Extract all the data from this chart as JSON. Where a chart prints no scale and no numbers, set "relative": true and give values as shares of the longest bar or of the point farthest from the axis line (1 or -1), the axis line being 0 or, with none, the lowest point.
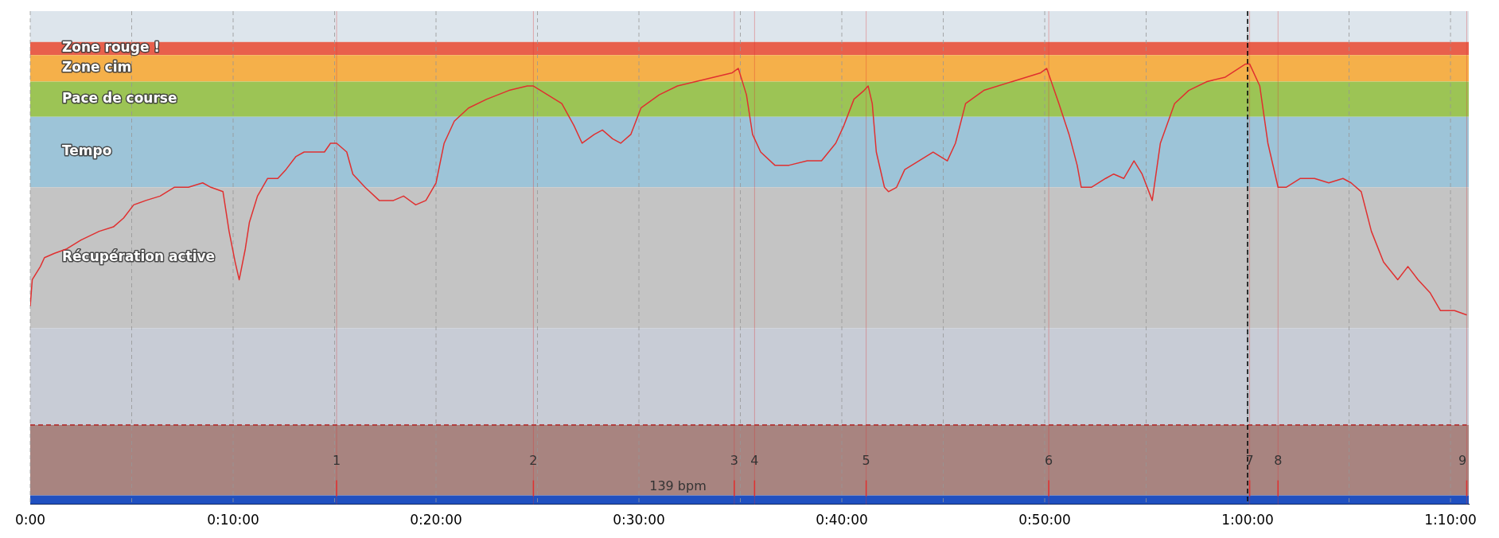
{
  "chart_data": {
    "type": "line",
    "relative": true,
    "legend": false,
    "grid": "x",
    "marker": "none",
    "xlim": [
      0,
      70.9
    ],
    "xticks": [
      {
        "value": 0,
        "label": "0:00"
      },
      {
        "value": 5,
        "label": null
      },
      {
        "value": 10,
        "label": "0:10:00"
      },
      {
        "value": 15,
        "label": null
      },
      {
        "value": 20,
        "label": "0:20:00"
      },
      {
        "value": 25,
        "label": null
      },
      {
        "value": 30,
        "label": "0:30:00"
      },
      {
        "value": 35,
        "label": null
      },
      {
        "value": 40,
        "label": "0:40:00"
      },
      {
        "value": 45,
        "label": null
      },
      {
        "value": 50,
        "label": "0:50:00"
      },
      {
        "value": 55,
        "label": null
      },
      {
        "value": 60,
        "label": "1:00:00"
      },
      {
        "value": 65,
        "label": null
      },
      {
        "value": 70,
        "label": "1:10:00"
      }
    ],
    "series": [
      {
        "color": "#e03030",
        "line_style": "solid",
        "x": [
          0,
          0.1,
          0.5,
          0.7,
          1.2,
          1.8,
          2.5,
          3.4,
          4.1,
          4.6,
          5.1,
          5.7,
          6.4,
          7.1,
          7.8,
          8.5,
          8.9,
          9.5,
          9.8,
          10.1,
          10.3,
          10.6,
          10.8,
          11.2,
          11.7,
          12.2,
          12.6,
          13.1,
          13.5,
          14.0,
          14.5,
          14.8,
          15.1,
          15.6,
          15.9,
          16.5,
          17.2,
          17.9,
          18.4,
          19.0,
          19.5,
          20.0,
          20.4,
          20.9,
          21.6,
          22.5,
          23.6,
          24.5,
          24.8,
          25.5,
          26.2,
          26.8,
          27.2,
          27.8,
          28.2,
          28.7,
          29.1,
          29.6,
          30.1,
          31.0,
          31.9,
          32.8,
          33.7,
          34.6,
          34.9,
          35.3,
          35.6,
          36.0,
          36.7,
          37.4,
          38.3,
          39.0,
          39.7,
          40.1,
          40.6,
          41.1,
          41.3,
          41.5,
          41.7,
          42.1,
          42.3,
          42.7,
          43.1,
          43.8,
          44.5,
          45.2,
          45.6,
          46.1,
          47.0,
          48.4,
          49.8,
          50.1,
          50.7,
          51.2,
          51.6,
          51.8,
          52.3,
          53.0,
          53.4,
          53.9,
          54.4,
          54.8,
          55.3,
          55.7,
          56.4,
          57.1,
          58.0,
          58.9,
          59.9,
          60.1,
          60.6,
          61.0,
          61.5,
          61.9,
          62.6,
          63.3,
          64.0,
          64.7,
          65.1,
          65.6,
          66.1,
          66.7,
          67.4,
          67.9,
          68.4,
          69.0,
          69.5,
          70.2,
          70.8
        ],
        "values": [
          0.45,
          0.51,
          0.54,
          0.56,
          0.57,
          0.58,
          0.6,
          0.62,
          0.63,
          0.65,
          0.68,
          0.69,
          0.7,
          0.72,
          0.72,
          0.73,
          0.72,
          0.71,
          0.62,
          0.55,
          0.51,
          0.58,
          0.64,
          0.7,
          0.74,
          0.74,
          0.76,
          0.79,
          0.8,
          0.8,
          0.8,
          0.82,
          0.82,
          0.8,
          0.75,
          0.72,
          0.69,
          0.69,
          0.7,
          0.68,
          0.69,
          0.73,
          0.82,
          0.87,
          0.9,
          0.92,
          0.94,
          0.95,
          0.95,
          0.93,
          0.91,
          0.86,
          0.82,
          0.84,
          0.85,
          0.83,
          0.82,
          0.84,
          0.9,
          0.93,
          0.95,
          0.96,
          0.97,
          0.98,
          0.99,
          0.93,
          0.84,
          0.8,
          0.77,
          0.77,
          0.78,
          0.78,
          0.82,
          0.86,
          0.92,
          0.94,
          0.95,
          0.91,
          0.8,
          0.72,
          0.71,
          0.72,
          0.76,
          0.78,
          0.8,
          0.78,
          0.82,
          0.91,
          0.94,
          0.96,
          0.98,
          0.99,
          0.91,
          0.84,
          0.77,
          0.72,
          0.72,
          0.74,
          0.75,
          0.74,
          0.78,
          0.75,
          0.69,
          0.82,
          0.91,
          0.94,
          0.96,
          0.97,
          1.0,
          1.0,
          0.95,
          0.82,
          0.72,
          0.72,
          0.74,
          0.74,
          0.73,
          0.74,
          0.73,
          0.71,
          0.62,
          0.55,
          0.51,
          0.54,
          0.51,
          0.48,
          0.44,
          0.44,
          0.43
        ]
      },
      {
        "color": "#b02020",
        "line_style": "dashed",
        "x": [
          0,
          70.8
        ],
        "values": [
          0.18,
          0.18
        ]
      }
    ],
    "bands": [
      {
        "axis": "y",
        "from": 1.05,
        "to": 1.12,
        "color": "#dde5ec"
      },
      {
        "axis": "y",
        "from": 1.02,
        "to": 1.05,
        "label": "Zone rouge !",
        "color": "#e8604c"
      },
      {
        "axis": "y",
        "from": 0.96,
        "to": 1.02,
        "label": "Zone cim",
        "color": "#f5b04a"
      },
      {
        "axis": "y",
        "from": 0.88,
        "to": 0.96,
        "label": "Pace de course",
        "color": "#9cc455"
      },
      {
        "axis": "y",
        "from": 0.72,
        "to": 0.88,
        "label": "Tempo",
        "color": "#9dc4d8"
      },
      {
        "axis": "y",
        "from": 0.4,
        "to": 0.72,
        "label": "Récupération active",
        "color": "#c4c4c4"
      },
      {
        "axis": "y",
        "from": 0.18,
        "to": 0.4,
        "color": "#c8ccd6"
      },
      {
        "axis": "y",
        "from": 0.02,
        "to": 0.18,
        "color": "#a88480"
      },
      {
        "axis": "y",
        "from": 0,
        "to": 0.02,
        "color": "#2050c0"
      }
    ],
    "ref_lines": [
      {
        "axis": "x",
        "value": 60,
        "color": "#000000",
        "line_style": "dashed"
      },
      {
        "axis": "x",
        "value": 15.1,
        "color": "#e03030"
      },
      {
        "axis": "x",
        "value": 24.8,
        "color": "#e03030"
      },
      {
        "axis": "x",
        "value": 34.7,
        "color": "#e03030"
      },
      {
        "axis": "x",
        "value": 35.7,
        "color": "#e03030"
      },
      {
        "axis": "x",
        "value": 41.2,
        "color": "#e03030"
      },
      {
        "axis": "x",
        "value": 50.2,
        "color": "#e03030"
      },
      {
        "axis": "x",
        "value": 60.1,
        "color": "#e03030"
      },
      {
        "axis": "x",
        "value": 61.5,
        "color": "#e03030"
      },
      {
        "axis": "x",
        "value": 70.8,
        "color": "#e03030"
      }
    ],
    "annotations": [
      "1",
      "2",
      "3",
      "4",
      "5",
      "6",
      "7",
      "8",
      "9",
      "139 bpm"
    ]
  }
}
